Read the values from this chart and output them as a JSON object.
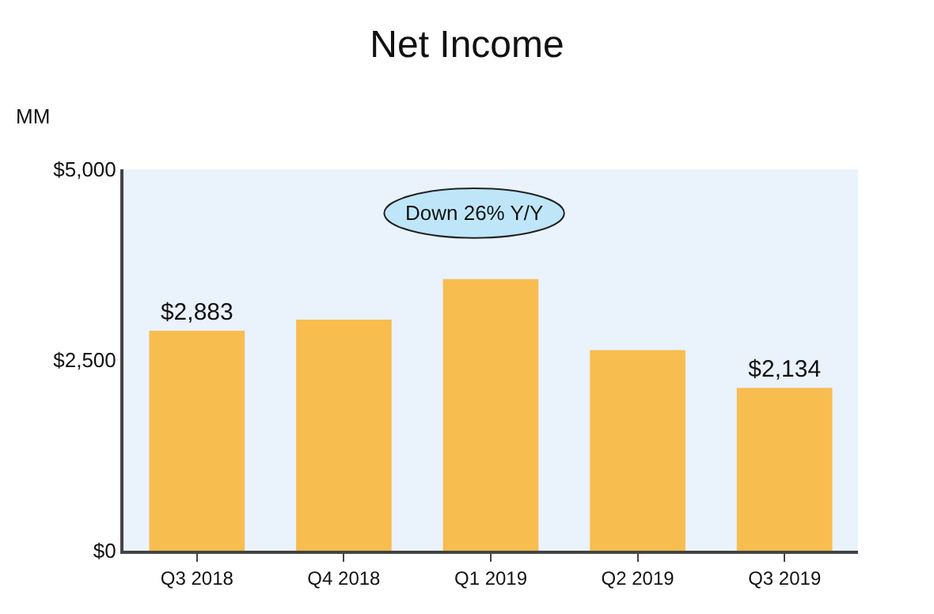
{
  "chart_data": {
    "type": "bar",
    "title": "Net Income",
    "ylabel": "MM",
    "categories": [
      "Q3 2018",
      "Q4 2018",
      "Q1 2019",
      "Q2 2019",
      "Q3 2019"
    ],
    "values": [
      2883,
      3030,
      3560,
      2630,
      2134
    ],
    "value_labels": [
      "$2,883",
      null,
      null,
      null,
      "$2,134"
    ],
    "color": "#f8bd4f",
    "ylim": [
      0,
      5000
    ],
    "yticks": [
      {
        "value": 0,
        "label": "$0"
      },
      {
        "value": 2500,
        "label": "$2,500"
      },
      {
        "value": 5000,
        "label": "$5,000"
      }
    ],
    "grid": false,
    "annotations": [
      "Down 26% Y/Y"
    ]
  }
}
